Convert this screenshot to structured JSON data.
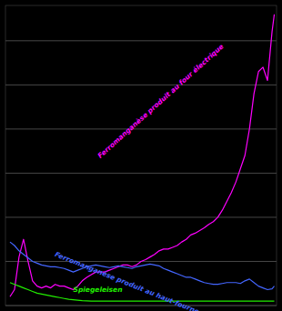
{
  "chart_data": {
    "type": "line",
    "x": [
      1890,
      1892,
      1894,
      1896,
      1898,
      1900,
      1902,
      1904,
      1906,
      1908,
      1910,
      1912,
      1914,
      1916,
      1918,
      1920,
      1922,
      1924,
      1926,
      1928,
      1930,
      1932,
      1934,
      1936,
      1938,
      1940,
      1942,
      1944,
      1946,
      1948,
      1950,
      1952,
      1954,
      1956,
      1958,
      1960,
      1962,
      1964,
      1966,
      1968,
      1970,
      1972,
      1974,
      1976,
      1978,
      1980,
      1982,
      1984,
      1986,
      1988,
      1990,
      1992,
      1994,
      1996,
      1998,
      2000,
      2002,
      2004,
      2006,
      2007
    ],
    "series": [
      {
        "name": "Ferromanganèse produit au four électrique",
        "color": "#ff00ff",
        "values": [
          10,
          18,
          55,
          75,
          50,
          28,
          22,
          20,
          22,
          20,
          24,
          22,
          22,
          20,
          18,
          22,
          28,
          32,
          35,
          38,
          38,
          38,
          40,
          42,
          44,
          46,
          46,
          44,
          46,
          50,
          52,
          55,
          58,
          62,
          64,
          64,
          66,
          68,
          72,
          75,
          80,
          82,
          85,
          88,
          92,
          95,
          100,
          108,
          118,
          128,
          140,
          155,
          170,
          200,
          240,
          265,
          270,
          255,
          310,
          330
        ]
      },
      {
        "name": "Ferromanganèse produit au haut-fourneau",
        "color": "#4466ff",
        "values": [
          72,
          68,
          62,
          58,
          54,
          50,
          48,
          46,
          45,
          44,
          44,
          43,
          42,
          40,
          38,
          40,
          42,
          44,
          45,
          46,
          45,
          44,
          43,
          44,
          45,
          44,
          43,
          42,
          44,
          45,
          46,
          47,
          46,
          45,
          42,
          40,
          38,
          36,
          34,
          32,
          32,
          30,
          28,
          26,
          25,
          24,
          24,
          25,
          26,
          26,
          26,
          25,
          28,
          30,
          26,
          22,
          20,
          18,
          19,
          22
        ]
      },
      {
        "name": "Spiegeleisen",
        "color": "#22ee00",
        "values": [
          26,
          24,
          22,
          20,
          18,
          16,
          14,
          13,
          12,
          11,
          10,
          9,
          8,
          7,
          6.5,
          6,
          5.5,
          5.2,
          5,
          5,
          5,
          5,
          5,
          5,
          5,
          5,
          5,
          5,
          5,
          5,
          5,
          5,
          5,
          5,
          5,
          5,
          5,
          5,
          5,
          5,
          5,
          5,
          5,
          5,
          5,
          5,
          5,
          5,
          5,
          5,
          5,
          5,
          5,
          5,
          5,
          5,
          5,
          5,
          5,
          5
        ]
      }
    ],
    "xlim": [
      1888,
      2008
    ],
    "ylim": [
      0,
      340
    ],
    "yticks": [
      0,
      50,
      100,
      150,
      200,
      250,
      300
    ],
    "grid": true,
    "tick_labels": false
  }
}
